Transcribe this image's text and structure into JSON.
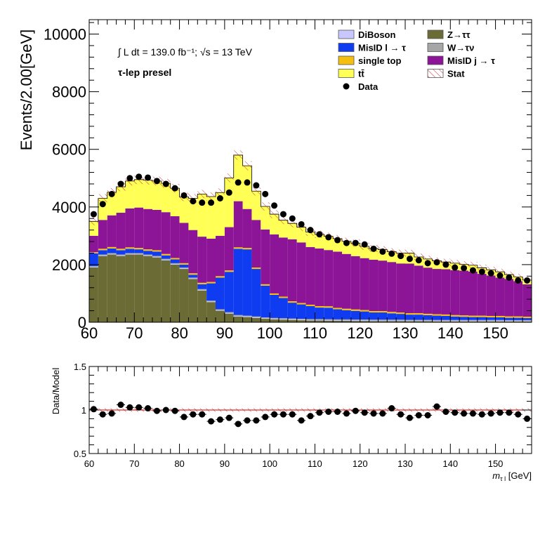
{
  "chart_data": [
    {
      "type": "bar",
      "stacked": true,
      "xlim": [
        60,
        158
      ],
      "ylim": [
        0,
        10500
      ],
      "ylabel": "Events/2.00[GeV]",
      "xticks": [
        60,
        70,
        80,
        90,
        100,
        110,
        120,
        130,
        140,
        150
      ],
      "yticks": [
        0,
        2000,
        4000,
        6000,
        8000,
        10000
      ],
      "ytick_labels": [
        "0",
        "2000",
        "4000",
        "6000",
        "8000",
        "10000"
      ],
      "annotations": {
        "lumi": "∫ L dt = 139.0 fb⁻¹;  √s = 13 TeV",
        "region": "τ-lep presel"
      },
      "legend_placement": "top-right",
      "bin_edges": [
        60,
        62,
        64,
        66,
        68,
        70,
        72,
        74,
        76,
        78,
        80,
        82,
        84,
        86,
        88,
        90,
        92,
        94,
        96,
        98,
        100,
        102,
        104,
        106,
        108,
        110,
        112,
        114,
        116,
        118,
        120,
        122,
        124,
        126,
        128,
        130,
        132,
        134,
        136,
        138,
        140,
        142,
        144,
        146,
        148,
        150,
        152,
        154,
        156,
        158
      ],
      "series": [
        {
          "name": "Z→ττ",
          "color": "#6b6b35",
          "values": [
            1900,
            2300,
            2350,
            2300,
            2350,
            2350,
            2300,
            2250,
            2150,
            2000,
            1850,
            1500,
            1100,
            700,
            400,
            300,
            200,
            180,
            150,
            120,
            100,
            90,
            80,
            70,
            60,
            60,
            55,
            50,
            50,
            45,
            45,
            40,
            40,
            40,
            40,
            35,
            35,
            35,
            30,
            30,
            30,
            30,
            30,
            30,
            30,
            30,
            25,
            25,
            25
          ]
        },
        {
          "name": "DiBoson",
          "color": "#c8c8ff",
          "values": [
            20,
            20,
            20,
            20,
            20,
            20,
            20,
            20,
            20,
            20,
            20,
            20,
            20,
            20,
            20,
            20,
            20,
            20,
            20,
            20,
            20,
            20,
            20,
            20,
            20,
            20,
            20,
            20,
            20,
            20,
            20,
            20,
            20,
            20,
            20,
            20,
            20,
            20,
            20,
            20,
            20,
            20,
            20,
            20,
            20,
            20,
            20,
            20,
            20
          ]
        },
        {
          "name": "W→τν",
          "color": "#a6a6a6",
          "values": [
            30,
            30,
            30,
            30,
            30,
            30,
            30,
            30,
            30,
            30,
            30,
            30,
            30,
            30,
            30,
            30,
            30,
            30,
            30,
            30,
            30,
            30,
            30,
            30,
            30,
            30,
            30,
            30,
            30,
            30,
            30,
            30,
            30,
            30,
            30,
            30,
            30,
            30,
            30,
            30,
            30,
            30,
            30,
            30,
            30,
            30,
            30,
            30,
            30
          ]
        },
        {
          "name": "MisID l → τ",
          "color": "#0f3cf0",
          "values": [
            440,
            150,
            160,
            150,
            150,
            130,
            130,
            150,
            120,
            130,
            100,
            100,
            170,
            600,
            1100,
            1400,
            2300,
            2300,
            1650,
            1100,
            800,
            700,
            550,
            500,
            450,
            400,
            400,
            350,
            320,
            300,
            280,
            250,
            250,
            220,
            200,
            180,
            180,
            160,
            150,
            140,
            120,
            110,
            100,
            100,
            90,
            90,
            80,
            80,
            70
          ]
        },
        {
          "name": "single top",
          "color": "#f5bf10",
          "values": [
            40,
            50,
            50,
            50,
            50,
            50,
            50,
            50,
            50,
            50,
            50,
            50,
            50,
            50,
            50,
            50,
            50,
            50,
            50,
            50,
            50,
            50,
            50,
            50,
            50,
            50,
            50,
            50,
            50,
            50,
            50,
            50,
            50,
            50,
            50,
            50,
            50,
            50,
            50,
            50,
            50,
            50,
            50,
            50,
            50,
            50,
            50,
            50,
            50
          ]
        },
        {
          "name": "MisID j → τ",
          "color": "#8c1496",
          "values": [
            570,
            1000,
            1100,
            1250,
            1350,
            1400,
            1400,
            1400,
            1450,
            1450,
            1400,
            1500,
            1600,
            1500,
            1400,
            1500,
            1600,
            1350,
            1650,
            1900,
            2050,
            2050,
            2150,
            2100,
            2000,
            2000,
            1950,
            1950,
            1900,
            1850,
            1800,
            1780,
            1750,
            1730,
            1700,
            1720,
            1650,
            1600,
            1570,
            1570,
            1560,
            1550,
            1530,
            1450,
            1400,
            1330,
            1300,
            1220,
            1120
          ]
        },
        {
          "name": "tt̄",
          "color": "#ffff55",
          "values": [
            500,
            750,
            800,
            900,
            950,
            970,
            1000,
            1000,
            1000,
            970,
            900,
            1100,
            1480,
            1460,
            1500,
            1710,
            1600,
            1500,
            1000,
            800,
            700,
            600,
            550,
            530,
            520,
            490,
            480,
            450,
            440,
            450,
            410,
            390,
            380,
            360,
            360,
            360,
            300,
            300,
            280,
            250,
            240,
            220,
            220,
            210,
            200,
            200,
            150,
            150,
            150
          ]
        }
      ],
      "data_points": [
        {
          "x": 61,
          "y": 3750
        },
        {
          "x": 63,
          "y": 4100
        },
        {
          "x": 65,
          "y": 4450
        },
        {
          "x": 67,
          "y": 4800
        },
        {
          "x": 69,
          "y": 5000
        },
        {
          "x": 71,
          "y": 5050
        },
        {
          "x": 73,
          "y": 5020
        },
        {
          "x": 75,
          "y": 4900
        },
        {
          "x": 77,
          "y": 4800
        },
        {
          "x": 79,
          "y": 4650
        },
        {
          "x": 81,
          "y": 4400
        },
        {
          "x": 83,
          "y": 4200
        },
        {
          "x": 85,
          "y": 4150
        },
        {
          "x": 87,
          "y": 4150
        },
        {
          "x": 89,
          "y": 4300
        },
        {
          "x": 91,
          "y": 4500
        },
        {
          "x": 93,
          "y": 4850
        },
        {
          "x": 95,
          "y": 4850
        },
        {
          "x": 97,
          "y": 4750
        },
        {
          "x": 99,
          "y": 4450
        },
        {
          "x": 101,
          "y": 4050
        },
        {
          "x": 103,
          "y": 3750
        },
        {
          "x": 105,
          "y": 3600
        },
        {
          "x": 107,
          "y": 3400
        },
        {
          "x": 109,
          "y": 3200
        },
        {
          "x": 111,
          "y": 3050
        },
        {
          "x": 113,
          "y": 2950
        },
        {
          "x": 115,
          "y": 2850
        },
        {
          "x": 117,
          "y": 2750
        },
        {
          "x": 119,
          "y": 2750
        },
        {
          "x": 121,
          "y": 2700
        },
        {
          "x": 123,
          "y": 2550
        },
        {
          "x": 125,
          "y": 2450
        },
        {
          "x": 127,
          "y": 2380
        },
        {
          "x": 129,
          "y": 2300
        },
        {
          "x": 131,
          "y": 2200
        },
        {
          "x": 133,
          "y": 2150
        },
        {
          "x": 135,
          "y": 2050
        },
        {
          "x": 137,
          "y": 2080
        },
        {
          "x": 139,
          "y": 2000
        },
        {
          "x": 141,
          "y": 1900
        },
        {
          "x": 143,
          "y": 1880
        },
        {
          "x": 145,
          "y": 1800
        },
        {
          "x": 147,
          "y": 1750
        },
        {
          "x": 149,
          "y": 1700
        },
        {
          "x": 151,
          "y": 1620
        },
        {
          "x": 153,
          "y": 1550
        },
        {
          "x": 155,
          "y": 1450
        },
        {
          "x": 157,
          "y": 1450
        }
      ],
      "legend": [
        {
          "label": "DiBoson",
          "kind": "box",
          "color": "#c8c8ff"
        },
        {
          "label": "Z→ττ",
          "kind": "box",
          "color": "#6b6b35"
        },
        {
          "label": "MisID l  →  τ",
          "kind": "box",
          "color": "#0f3cf0"
        },
        {
          "label": "W→τν",
          "kind": "box",
          "color": "#a6a6a6"
        },
        {
          "label": "single top",
          "kind": "box",
          "color": "#f5bf10"
        },
        {
          "label": "MisID j  →  τ",
          "kind": "box",
          "color": "#8c1496"
        },
        {
          "label": "tt̄",
          "kind": "box",
          "color": "#ffff55"
        },
        {
          "label": "Stat",
          "kind": "hatch",
          "color": "#cc3333"
        },
        {
          "label": "Data",
          "kind": "marker",
          "color": "#000000"
        }
      ]
    },
    {
      "type": "scatter",
      "xlim": [
        60,
        158
      ],
      "ylim": [
        0.5,
        1.5
      ],
      "ylabel": "Data/Model",
      "xlabel": "m",
      "xlabel_subscript": "τ l",
      "xlabel_unit": " [GeV]",
      "xticks": [
        60,
        70,
        80,
        90,
        100,
        110,
        120,
        130,
        140,
        150
      ],
      "yticks": [
        0.5,
        1,
        1.5
      ],
      "ytick_labels": [
        "0.5",
        "1",
        "1.5"
      ],
      "reference_line": 1.0,
      "ratio_points": [
        {
          "x": 61,
          "y": 1.01
        },
        {
          "x": 63,
          "y": 0.95
        },
        {
          "x": 65,
          "y": 0.96
        },
        {
          "x": 67,
          "y": 1.06
        },
        {
          "x": 69,
          "y": 1.03
        },
        {
          "x": 71,
          "y": 1.03
        },
        {
          "x": 73,
          "y": 1.02
        },
        {
          "x": 75,
          "y": 0.99
        },
        {
          "x": 77,
          "y": 1.0
        },
        {
          "x": 79,
          "y": 0.99
        },
        {
          "x": 81,
          "y": 0.92
        },
        {
          "x": 83,
          "y": 0.95
        },
        {
          "x": 85,
          "y": 0.95
        },
        {
          "x": 87,
          "y": 0.87
        },
        {
          "x": 89,
          "y": 0.89
        },
        {
          "x": 91,
          "y": 0.91
        },
        {
          "x": 93,
          "y": 0.84
        },
        {
          "x": 95,
          "y": 0.88
        },
        {
          "x": 97,
          "y": 0.88
        },
        {
          "x": 99,
          "y": 0.92
        },
        {
          "x": 101,
          "y": 0.95
        },
        {
          "x": 103,
          "y": 0.95
        },
        {
          "x": 105,
          "y": 0.95
        },
        {
          "x": 107,
          "y": 0.88
        },
        {
          "x": 109,
          "y": 0.93
        },
        {
          "x": 111,
          "y": 0.97
        },
        {
          "x": 113,
          "y": 0.98
        },
        {
          "x": 115,
          "y": 0.98
        },
        {
          "x": 117,
          "y": 0.96
        },
        {
          "x": 119,
          "y": 0.99
        },
        {
          "x": 121,
          "y": 0.97
        },
        {
          "x": 123,
          "y": 0.96
        },
        {
          "x": 125,
          "y": 0.96
        },
        {
          "x": 127,
          "y": 1.02
        },
        {
          "x": 129,
          "y": 0.95
        },
        {
          "x": 131,
          "y": 0.91
        },
        {
          "x": 133,
          "y": 0.94
        },
        {
          "x": 135,
          "y": 0.94
        },
        {
          "x": 137,
          "y": 1.04
        },
        {
          "x": 139,
          "y": 0.98
        },
        {
          "x": 141,
          "y": 0.97
        },
        {
          "x": 143,
          "y": 0.96
        },
        {
          "x": 145,
          "y": 0.96
        },
        {
          "x": 147,
          "y": 0.95
        },
        {
          "x": 149,
          "y": 0.96
        },
        {
          "x": 151,
          "y": 0.97
        },
        {
          "x": 153,
          "y": 0.97
        },
        {
          "x": 155,
          "y": 0.95
        },
        {
          "x": 157,
          "y": 0.9
        }
      ]
    }
  ]
}
